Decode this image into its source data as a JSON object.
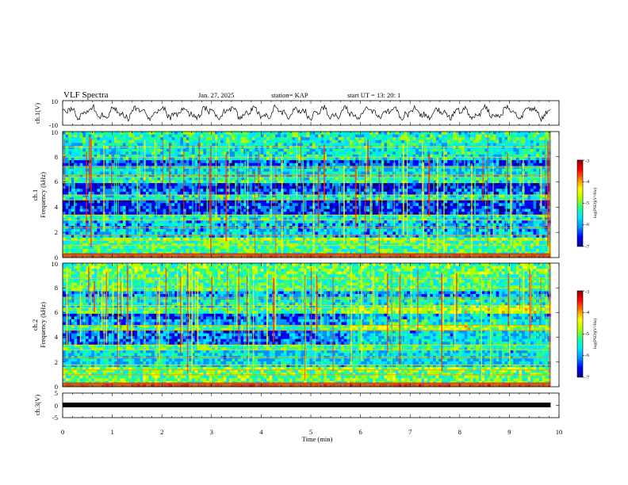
{
  "header": {
    "title": "VLF Spectra",
    "date": "Jan. 27, 2025",
    "station": "station= KAP",
    "start": "start  UT  =   13: 20: 1"
  },
  "colors": {
    "colormap": [
      "#00008a",
      "#0000ff",
      "#0090ff",
      "#00e6ff",
      "#20ff90",
      "#b0ff00",
      "#ffff00",
      "#ff8000",
      "#ff0000",
      "#8a0000"
    ]
  },
  "chart_data": [
    {
      "type": "line",
      "name": "ch1-waveform",
      "ylabel": "ch.1(V)",
      "yticks": [
        "10",
        "-10"
      ],
      "ylim": [
        -10,
        10
      ],
      "xlim": [
        0,
        10
      ],
      "trace": "oscillating voltage, roughly -6 V to +7 V, from t=0 to ~9.8 min"
    },
    {
      "type": "heatmap",
      "name": "ch1-spectrogram",
      "ylabel_line1": "ch.1",
      "ylabel_line2": "Frequency (kHz)",
      "yticks": [
        "0",
        "2",
        "4",
        "6",
        "8",
        "10"
      ],
      "ylim": [
        0,
        10
      ],
      "xlim": [
        0,
        10
      ],
      "colorbar": {
        "label": "log(PSD)(V²/Hz)",
        "ticks": [
          "-3",
          "-4",
          "-5",
          "-6",
          "-7"
        ],
        "range": [
          -7,
          -3
        ]
      }
    },
    {
      "type": "heatmap",
      "name": "ch2-spectrogram",
      "ylabel_line1": "ch.2",
      "ylabel_line2": "Frequency (kHz)",
      "yticks": [
        "0",
        "2",
        "4",
        "6",
        "8",
        "10"
      ],
      "ylim": [
        0,
        10
      ],
      "xlim": [
        0,
        10
      ],
      "colorbar": {
        "label": "log(PSD)(V²/Hz)",
        "ticks": [
          "-3",
          "-4",
          "-5",
          "-6",
          "-7"
        ],
        "range": [
          -7,
          -3
        ]
      }
    },
    {
      "type": "line",
      "name": "ch3-waveform",
      "ylabel": "ch.3(V)",
      "yticks": [
        "5",
        "0",
        "-5"
      ],
      "ylim": [
        -5,
        5
      ],
      "xlim": [
        0,
        10
      ],
      "xlabel": "Time (min)",
      "xticks": [
        "0",
        "1",
        "2",
        "3",
        "4",
        "5",
        "6",
        "7",
        "8",
        "9",
        "10"
      ],
      "trace": "thick flat band near -1 V from t=0 to ~9.8 min"
    }
  ]
}
